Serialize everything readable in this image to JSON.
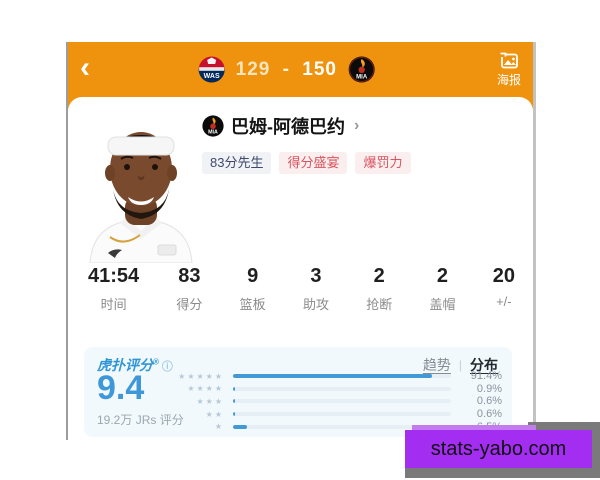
{
  "header": {
    "back_glyph": "‹",
    "score": {
      "home": "129",
      "separator": "-",
      "away": "150"
    },
    "teams": {
      "home_abbr": "WAS",
      "away_abbr": "MIA"
    },
    "poster_label": "海报"
  },
  "player": {
    "team_abbr": "MIA",
    "name": "巴姆-阿德巴约",
    "chevron": "›",
    "tags": [
      {
        "label": "83分先生",
        "style": "blue"
      },
      {
        "label": "得分盛宴",
        "style": "red"
      },
      {
        "label": "爆罚力",
        "style": "red"
      }
    ]
  },
  "stats": [
    {
      "value": "41:54",
      "label": "时间"
    },
    {
      "value": "83",
      "label": "得分"
    },
    {
      "value": "9",
      "label": "篮板"
    },
    {
      "value": "3",
      "label": "助攻"
    },
    {
      "value": "2",
      "label": "抢断"
    },
    {
      "value": "2",
      "label": "盖帽"
    },
    {
      "value": "20",
      "label": "+/-"
    }
  ],
  "rating": {
    "brand": "虎扑评分",
    "registered": "®",
    "info_glyph": "ⓘ",
    "score": "9.4",
    "votes": "19.2万 JRs 评分",
    "tabs": [
      {
        "label": "趋势",
        "active": false
      },
      {
        "label": "分布",
        "active": true
      }
    ],
    "tab_divider": "|"
  },
  "chart_data": {
    "type": "bar",
    "orientation": "horizontal",
    "title": "虎扑评分分布",
    "categories": [
      "5星",
      "4星",
      "3星",
      "2星",
      "1星"
    ],
    "stars": [
      5,
      4,
      3,
      2,
      1
    ],
    "values": [
      91.4,
      0.9,
      0.6,
      0.6,
      6.5
    ],
    "labels": [
      "91.4%",
      "0.9%",
      "0.6%",
      "0.6%",
      "6.5%"
    ],
    "xlim": [
      0,
      100
    ],
    "bar_color": "#4199d6",
    "track_color": "#e6eff6"
  },
  "colors": {
    "header_orange": "#ef930f",
    "rating_blue": "#3e97d8",
    "tag_red": "#d8545e",
    "watermark_purple": "#a42df2"
  },
  "watermark": {
    "text": "stats-yabo.com"
  }
}
